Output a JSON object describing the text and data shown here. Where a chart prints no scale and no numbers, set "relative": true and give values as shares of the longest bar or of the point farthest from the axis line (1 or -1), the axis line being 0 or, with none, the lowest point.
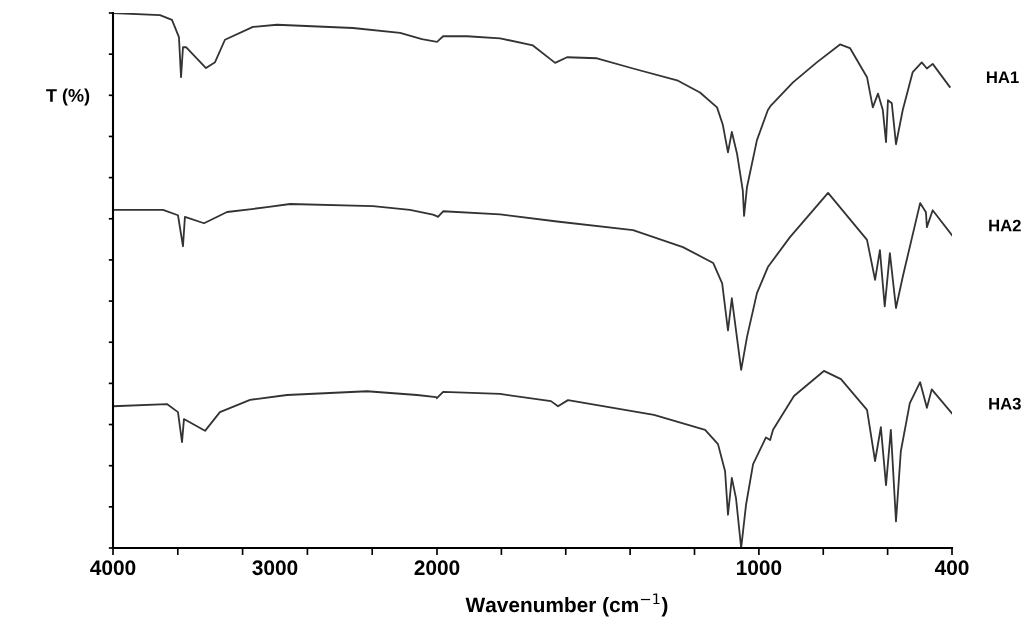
{
  "chart_data": [
    {
      "type": "line",
      "relative": true,
      "ylabel": "T (%)",
      "legend": false,
      "tick_labels": "x",
      "marker": "none",
      "line_style": "solid",
      "xlim": [
        4000,
        2000
      ],
      "xticks": [
        4000,
        {
          "value": 3600,
          "label": null
        },
        {
          "value": 3200,
          "label": null
        },
        3000,
        {
          "value": 2800,
          "label": null
        },
        {
          "value": 2400,
          "label": null
        },
        2000
      ],
      "series": [
        {
          "color": "#333333",
          "x": [
            4000,
            3710,
            3636,
            3593,
            3580,
            3568,
            3549,
            3426,
            3370,
            3309,
            3136,
            2988,
            2519,
            2228,
            2093,
            2000
          ],
          "values": [
            1.0,
            0.996,
            0.987,
            0.955,
            0.88,
            0.936,
            0.936,
            0.897,
            0.908,
            0.95,
            0.974,
            0.978,
            0.972,
            0.963,
            0.951,
            0.946
          ]
        },
        {
          "color": "#333333",
          "x": [
            4000,
            3691,
            3599,
            3568,
            3556,
            3438,
            3296,
            3049,
            2907,
            2395,
            2167,
            2025,
            2000
          ],
          "values": [
            0.632,
            0.632,
            0.622,
            0.564,
            0.619,
            0.607,
            0.628,
            0.637,
            0.643,
            0.639,
            0.632,
            0.623,
            0.62
          ]
        },
        {
          "color": "#333333",
          "x": [
            4000,
            3667,
            3599,
            3574,
            3562,
            3432,
            3340,
            3154,
            2926,
            2432,
            2123,
            2006,
            2000
          ],
          "values": [
            0.265,
            0.269,
            0.254,
            0.198,
            0.241,
            0.219,
            0.254,
            0.277,
            0.286,
            0.293,
            0.286,
            0.282,
            0.28
          ]
        }
      ]
    },
    {
      "type": "line",
      "relative": true,
      "xlabel": "Wavenumber (cm$^{−1}$)",
      "legend": false,
      "tick_labels": "x",
      "marker": "none",
      "line_style": "solid",
      "xlim": [
        2000,
        400
      ],
      "xticks": [
        {
          "value": 1800,
          "label": null
        },
        {
          "value": 1600,
          "label": null
        },
        {
          "value": 1400,
          "label": null
        },
        {
          "value": 1200,
          "label": null
        },
        1000,
        {
          "value": 800,
          "label": null
        },
        {
          "value": 600,
          "label": null
        },
        400
      ],
      "series": [
        {
          "name": "HA1",
          "color": "#333333",
          "x": [
            2000,
            1981,
            1907,
            1804,
            1702,
            1633,
            1596,
            1503,
            1391,
            1254,
            1183,
            1130,
            1112,
            1096,
            1084,
            1068,
            1050,
            1046,
            1037,
            1006,
            972,
            962,
            894,
            820,
            748,
            717,
            664,
            646,
            630,
            615,
            605,
            599,
            587,
            574,
            553,
            522,
            494,
            478,
            460,
            407
          ],
          "values": [
            0.989,
            1.0,
            1.0,
            0.996,
            0.982,
            0.948,
            0.959,
            0.957,
            0.937,
            0.914,
            0.89,
            0.861,
            0.827,
            0.773,
            0.813,
            0.771,
            0.699,
            0.649,
            0.705,
            0.797,
            0.856,
            0.865,
            0.91,
            0.949,
            0.984,
            0.977,
            0.92,
            0.861,
            0.888,
            0.856,
            0.793,
            0.875,
            0.869,
            0.789,
            0.856,
            0.93,
            0.949,
            0.937,
            0.946,
            0.901
          ]
        },
        {
          "name": "HA2",
          "color": "#333333",
          "x": [
            2000,
            1997,
            1981,
            1804,
            1627,
            1391,
            1236,
            1142,
            1114,
            1096,
            1084,
            1055,
            1037,
            1006,
            972,
            904,
            785,
            664,
            639,
            624,
            609,
            593,
            574,
            553,
            499,
            481,
            478,
            460,
            400
          ],
          "values": [
            0.648,
            0.647,
            0.658,
            0.652,
            0.638,
            0.621,
            0.588,
            0.557,
            0.517,
            0.425,
            0.488,
            0.348,
            0.412,
            0.498,
            0.549,
            0.607,
            0.694,
            0.602,
            0.524,
            0.582,
            0.472,
            0.576,
            0.469,
            0.53,
            0.674,
            0.656,
            0.627,
            0.66,
            0.611
          ]
        },
        {
          "name": "HA3",
          "color": "#333333",
          "x": [
            2000,
            1981,
            1804,
            1646,
            1624,
            1593,
            1326,
            1167,
            1127,
            1105,
            1096,
            1084,
            1071,
            1055,
            1040,
            1018,
            978,
            965,
            956,
            891,
            798,
            745,
            664,
            639,
            621,
            605,
            590,
            574,
            559,
            531,
            499,
            478,
            463,
            400
          ],
          "values": [
            0.293,
            0.305,
            0.301,
            0.287,
            0.277,
            0.289,
            0.26,
            0.231,
            0.203,
            0.15,
            0.065,
            0.137,
            0.097,
            0.0,
            0.084,
            0.164,
            0.216,
            0.211,
            0.231,
            0.297,
            0.346,
            0.33,
            0.27,
            0.17,
            0.236,
            0.123,
            0.231,
            0.052,
            0.189,
            0.283,
            0.324,
            0.274,
            0.31,
            0.263
          ]
        }
      ]
    }
  ]
}
